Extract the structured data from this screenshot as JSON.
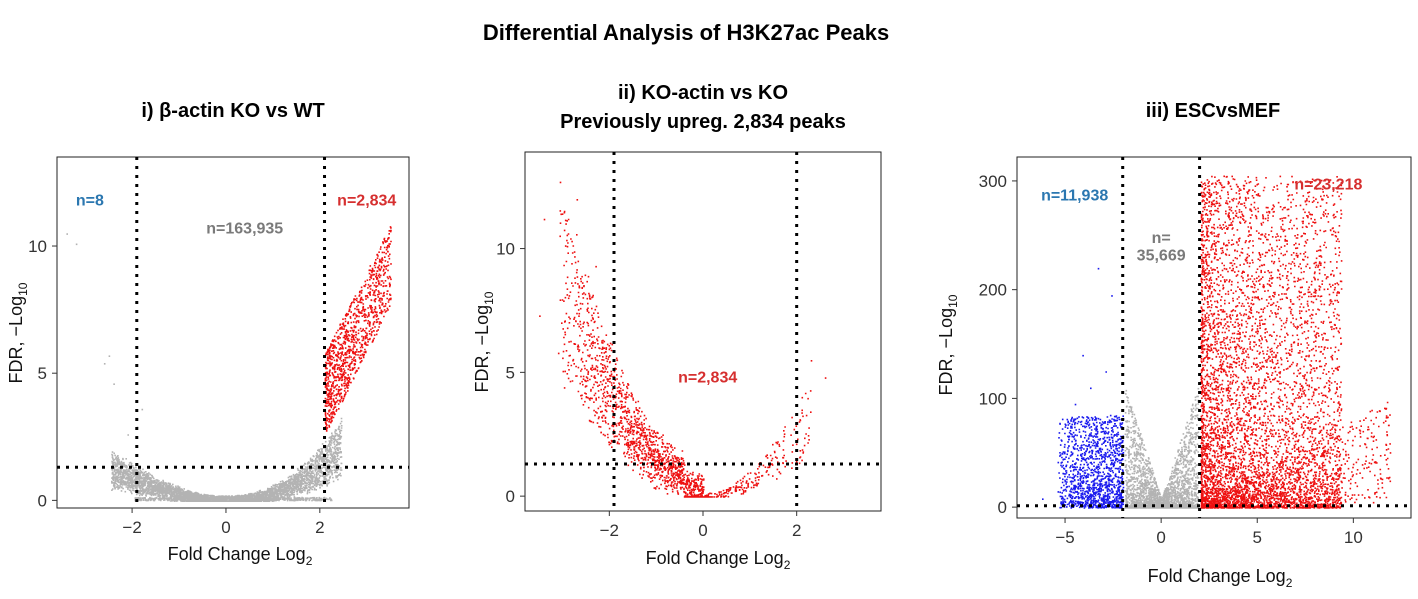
{
  "figure": {
    "title": "Differential Analysis of H3K27ac Peaks"
  },
  "colors": {
    "ns": "#b3b3b3",
    "up": "#ee1111",
    "up_label": "#d62f2f",
    "down": "#1a1aee",
    "down_label": "#2b77b0",
    "ns_label": "#7a7a7a",
    "threshold": "#000000"
  },
  "chart_data": [
    {
      "type": "scatter",
      "title_lines": [
        "i) β-actin KO vs WT"
      ],
      "xlabel": "Fold Change Log",
      "xlabel_sub": "2",
      "ylabel": "FDR, −Log",
      "ylabel_sub": "10",
      "xlim": [
        -3.6,
        3.9
      ],
      "ylim": [
        -0.3,
        13.5
      ],
      "xticks": [
        -2,
        0,
        2
      ],
      "yticks": [
        0,
        5,
        10
      ],
      "xtick_labels": [
        "−2",
        "0",
        "2"
      ],
      "ytick_labels": [
        "0",
        "5",
        "10"
      ],
      "vlines": [
        -1.9,
        2.1
      ],
      "hline": 1.3,
      "annotations": [
        {
          "text": "n=8",
          "x": -2.9,
          "y": 11.6,
          "group": "down"
        },
        {
          "text": "n=163,935",
          "x": 0.4,
          "y": 10.5,
          "group": "ns"
        },
        {
          "text": "n=2,834",
          "x": 3.0,
          "y": 11.6,
          "group": "up"
        }
      ]
    },
    {
      "type": "scatter",
      "title_lines": [
        "ii) KO-actin vs KO",
        "Previously upreg. 2,834 peaks"
      ],
      "xlabel": "Fold Change Log",
      "xlabel_sub": "2",
      "ylabel": "FDR, −Log",
      "ylabel_sub": "10",
      "xlim": [
        -3.8,
        3.8
      ],
      "ylim": [
        -0.6,
        13.9
      ],
      "xticks": [
        -2,
        0,
        2
      ],
      "yticks": [
        0,
        5,
        10
      ],
      "xtick_labels": [
        "−2",
        "0",
        "2"
      ],
      "ytick_labels": [
        "0",
        "5",
        "10"
      ],
      "vlines": [
        -1.9,
        2.0
      ],
      "hline": 1.3,
      "annotations": [
        {
          "text": "n=2,834",
          "x": 0.1,
          "y": 4.6,
          "group": "up"
        }
      ]
    },
    {
      "type": "scatter",
      "title_lines": [
        "iii) ESCvsMEF"
      ],
      "xlabel": "Fold Change Log",
      "xlabel_sub": "2",
      "ylabel": "FDR, −Log",
      "ylabel_sub": "10",
      "xlim": [
        -7.5,
        13.0
      ],
      "ylim": [
        -10,
        322
      ],
      "xticks": [
        -5,
        0,
        5,
        10
      ],
      "yticks": [
        0,
        100,
        200,
        300
      ],
      "xtick_labels": [
        "−5",
        "0",
        "5",
        "10"
      ],
      "ytick_labels": [
        "0",
        "100",
        "200",
        "300"
      ],
      "vlines": [
        -2,
        2
      ],
      "hline": 1.3,
      "annotations": [
        {
          "text": "n=11,938",
          "x": -4.5,
          "y": 282,
          "group": "down"
        },
        {
          "text": "n=",
          "x": 0.0,
          "y": 243,
          "group": "ns"
        },
        {
          "text": "35,669",
          "x": 0.0,
          "y": 227,
          "group": "ns"
        },
        {
          "text": "n=23,218",
          "x": 8.7,
          "y": 292,
          "group": "up"
        }
      ]
    }
  ]
}
